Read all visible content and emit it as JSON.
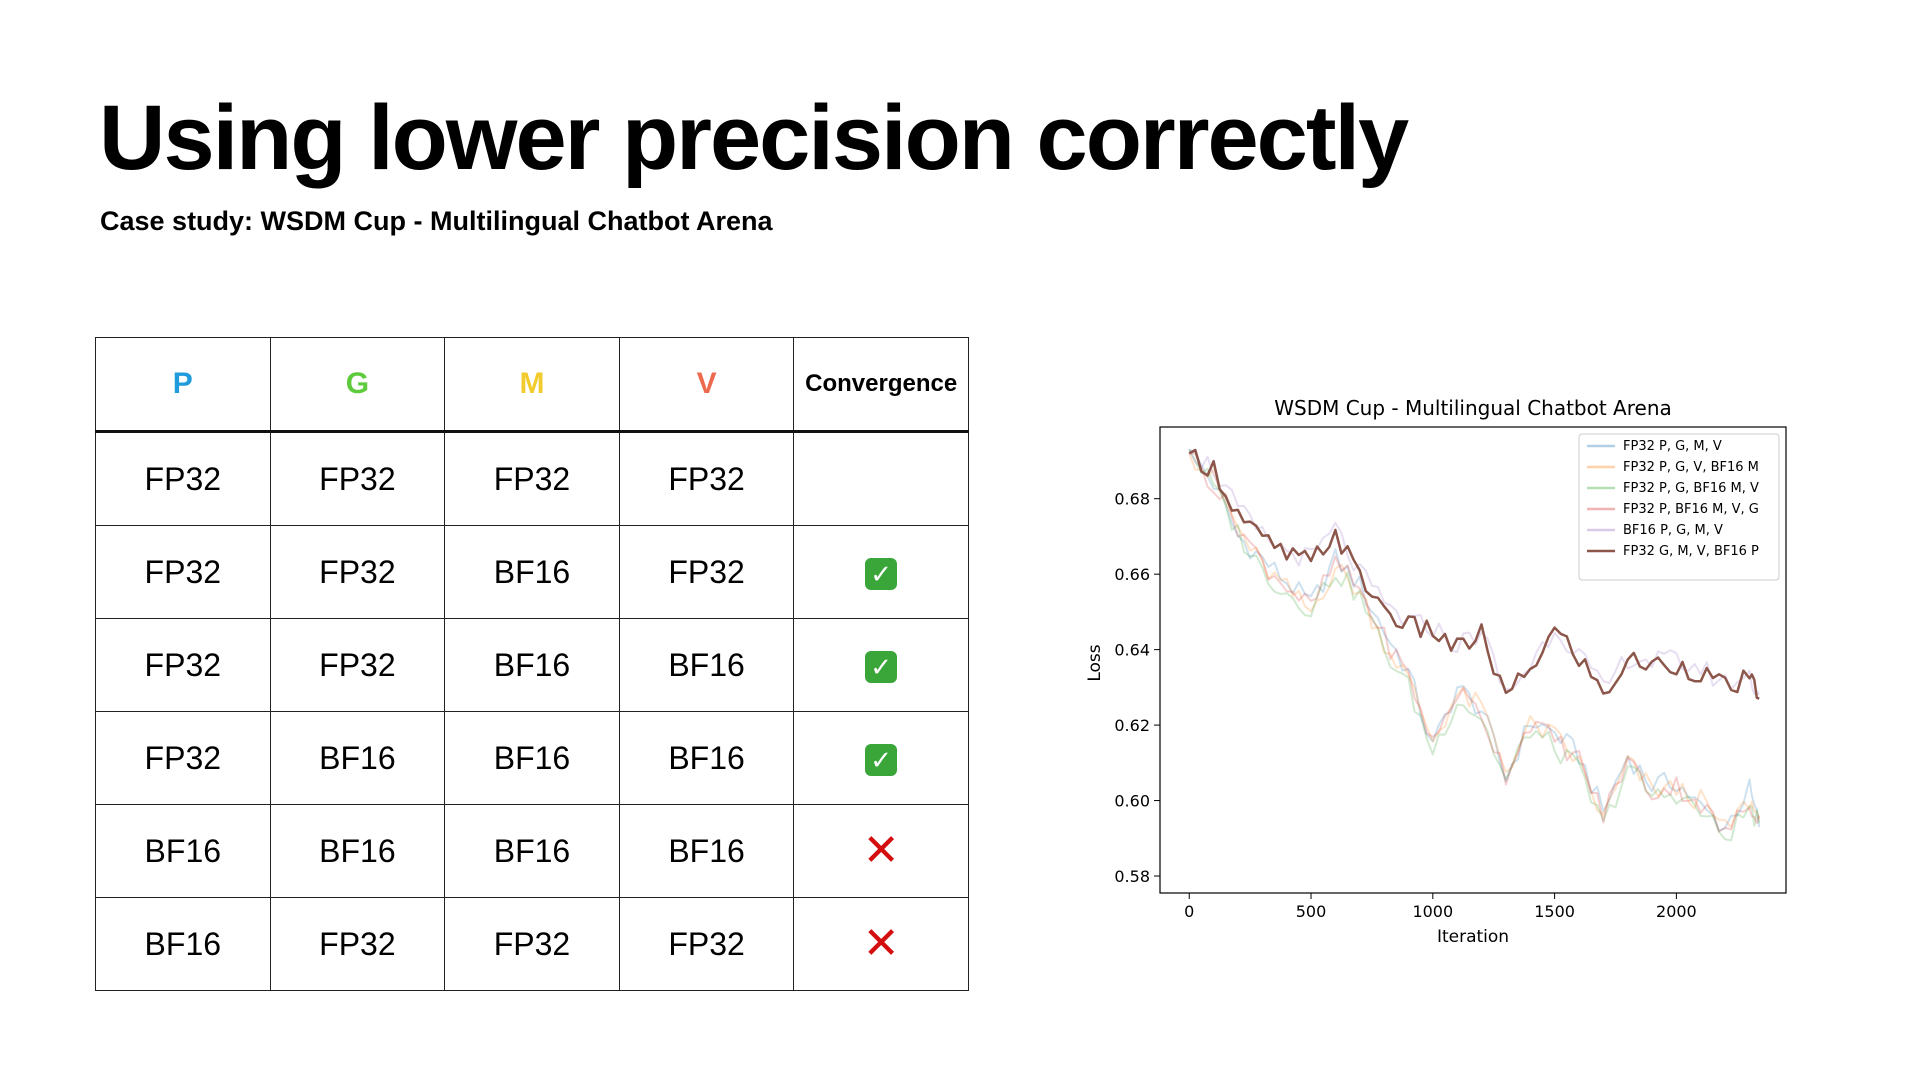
{
  "slide": {
    "title": "Using lower precision correctly",
    "subtitle": "Case study: WSDM Cup - Multilingual Chatbot Arena"
  },
  "table": {
    "headers": [
      {
        "label": "P",
        "color": "#1f9bde"
      },
      {
        "label": "G",
        "color": "#5ecb3c"
      },
      {
        "label": "M",
        "color": "#f2cb2e"
      },
      {
        "label": "V",
        "color": "#ee6a4f"
      },
      {
        "label": "Convergence",
        "color": "#000000"
      }
    ],
    "rows": [
      {
        "cells": [
          "FP32",
          "FP32",
          "FP32",
          "FP32"
        ],
        "convergence": "none"
      },
      {
        "cells": [
          "FP32",
          "FP32",
          "BF16",
          "FP32"
        ],
        "convergence": "yes",
        "mark": "✓"
      },
      {
        "cells": [
          "FP32",
          "FP32",
          "BF16",
          "BF16"
        ],
        "convergence": "yes",
        "mark": "✓"
      },
      {
        "cells": [
          "FP32",
          "BF16",
          "BF16",
          "BF16"
        ],
        "convergence": "yes",
        "mark": "✓"
      },
      {
        "cells": [
          "BF16",
          "BF16",
          "BF16",
          "BF16"
        ],
        "convergence": "no",
        "mark": "✕"
      },
      {
        "cells": [
          "BF16",
          "FP32",
          "FP32",
          "FP32"
        ],
        "convergence": "no",
        "mark": "✕"
      }
    ]
  },
  "chart_data": {
    "type": "line",
    "title": "WSDM Cup - Multilingual Chatbot Arena",
    "xlabel": "Iteration",
    "ylabel": "Loss",
    "xlim": [
      -120,
      2450
    ],
    "ylim": [
      0.5755,
      0.699
    ],
    "xticks": [
      0,
      500,
      1000,
      1500,
      2000
    ],
    "yticks": [
      0.58,
      0.6,
      0.62,
      0.64,
      0.66,
      0.68
    ],
    "ytick_labels": [
      "0.58",
      "0.60",
      "0.62",
      "0.64",
      "0.66",
      "0.68"
    ],
    "legend_position": "top-right",
    "x": [
      0,
      100,
      200,
      300,
      400,
      500,
      600,
      700,
      800,
      900,
      1000,
      1100,
      1200,
      1300,
      1400,
      1500,
      1600,
      1700,
      1800,
      1900,
      2000,
      2100,
      2200,
      2300,
      2340
    ],
    "series": [
      {
        "name": "FP32 P, G, M, V",
        "color": "#1f77b4",
        "opacity": 0.22,
        "values": [
          0.693,
          0.684,
          0.67,
          0.664,
          0.658,
          0.652,
          0.664,
          0.657,
          0.645,
          0.634,
          0.614,
          0.63,
          0.624,
          0.606,
          0.621,
          0.618,
          0.612,
          0.597,
          0.612,
          0.604,
          0.605,
          0.598,
          0.593,
          0.603,
          0.593
        ]
      },
      {
        "name": "FP32 P, G, V, BF16 M",
        "color": "#ff7f0e",
        "opacity": 0.22,
        "values": [
          0.692,
          0.685,
          0.672,
          0.662,
          0.656,
          0.65,
          0.662,
          0.655,
          0.642,
          0.632,
          0.616,
          0.628,
          0.625,
          0.608,
          0.62,
          0.617,
          0.61,
          0.595,
          0.61,
          0.603,
          0.603,
          0.6,
          0.592,
          0.6,
          0.595
        ]
      },
      {
        "name": "FP32 P, G, BF16 M, V",
        "color": "#2ca02c",
        "opacity": 0.22,
        "values": [
          0.693,
          0.683,
          0.671,
          0.661,
          0.655,
          0.651,
          0.661,
          0.654,
          0.64,
          0.63,
          0.613,
          0.627,
          0.622,
          0.605,
          0.619,
          0.614,
          0.608,
          0.593,
          0.609,
          0.601,
          0.602,
          0.597,
          0.59,
          0.598,
          0.594
        ]
      },
      {
        "name": "FP32 P, BF16 M, V, G",
        "color": "#d62728",
        "opacity": 0.22,
        "values": [
          0.692,
          0.684,
          0.673,
          0.663,
          0.657,
          0.651,
          0.663,
          0.656,
          0.643,
          0.633,
          0.615,
          0.629,
          0.623,
          0.607,
          0.621,
          0.616,
          0.611,
          0.596,
          0.611,
          0.602,
          0.604,
          0.599,
          0.591,
          0.599,
          0.596
        ]
      },
      {
        "name": "BF16 P, G, M, V",
        "color": "#9467bd",
        "opacity": 0.22,
        "values": [
          0.693,
          0.688,
          0.677,
          0.67,
          0.666,
          0.664,
          0.672,
          0.66,
          0.652,
          0.647,
          0.646,
          0.641,
          0.645,
          0.628,
          0.636,
          0.646,
          0.639,
          0.629,
          0.638,
          0.637,
          0.637,
          0.635,
          0.631,
          0.633,
          0.628
        ]
      },
      {
        "name": "FP32 G, M, V, BF16 P",
        "color": "#8c564b",
        "opacity": 1.0,
        "values": [
          0.692,
          0.688,
          0.676,
          0.669,
          0.665,
          0.663,
          0.671,
          0.659,
          0.651,
          0.646,
          0.645,
          0.64,
          0.644,
          0.627,
          0.635,
          0.645,
          0.638,
          0.628,
          0.637,
          0.636,
          0.636,
          0.634,
          0.63,
          0.632,
          0.627
        ]
      }
    ]
  }
}
